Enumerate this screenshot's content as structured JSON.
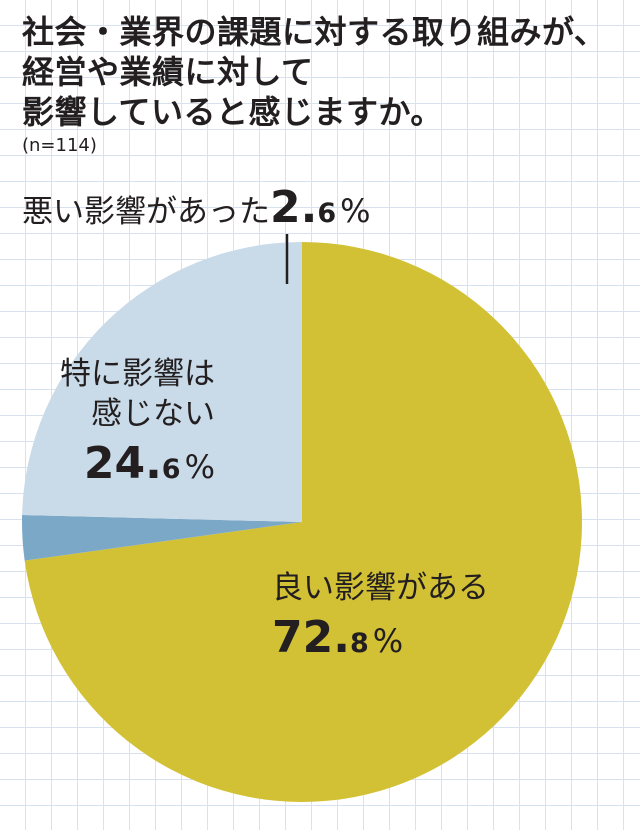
{
  "title_lines": [
    "社会・業界の課題に対する取り組みが、",
    "経営や業績に対して",
    "影響していると感じますか。"
  ],
  "sample_size": "(n=114)",
  "chart_data": {
    "type": "pie",
    "slices": [
      {
        "label_lines": [
          "良い影響がある"
        ],
        "value": 72.8,
        "value_text": "72.8",
        "unit": "%",
        "color": "#d3c135"
      },
      {
        "label_lines": [
          "悪い影響があった"
        ],
        "value": 2.6,
        "value_text": "2.6",
        "unit": "%",
        "color": "#7ba8c7"
      },
      {
        "label_lines": [
          "特に影響は",
          "感じない"
        ],
        "value": 24.6,
        "value_text": "24.6",
        "unit": "%",
        "color": "#c9dae8"
      }
    ]
  }
}
